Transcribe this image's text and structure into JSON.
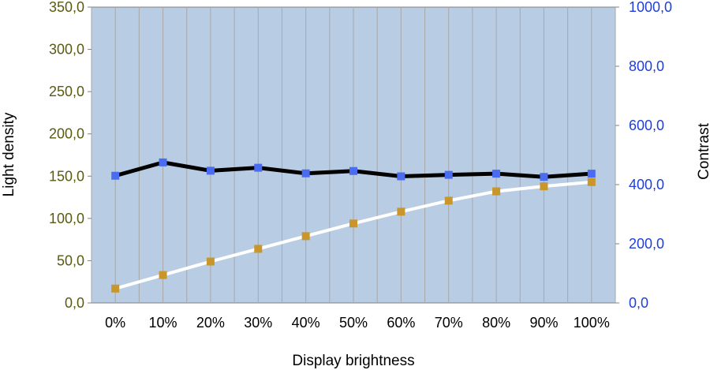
{
  "chart_data": {
    "type": "line",
    "title": "",
    "xlabel": "Display brightness",
    "ylabel_left": "Light density",
    "ylabel_right": "Contrast",
    "categories": [
      "0%",
      "10%",
      "20%",
      "30%",
      "40%",
      "50%",
      "60%",
      "70%",
      "80%",
      "90%",
      "100%"
    ],
    "ylim_left": [
      0,
      350
    ],
    "ylim_right": [
      0,
      1000
    ],
    "yticks_left": [
      "0,0",
      "50,0",
      "100,0",
      "150,0",
      "200,0",
      "250,0",
      "300,0",
      "350,0"
    ],
    "yticks_right": [
      "0,0",
      "200,0",
      "400,0",
      "600,0",
      "800,0",
      "1000,0"
    ],
    "yticks_left_values": [
      0,
      50,
      100,
      150,
      200,
      250,
      300,
      350
    ],
    "yticks_right_values": [
      0,
      200,
      400,
      600,
      800,
      1000
    ],
    "grid": "vertical",
    "legend": "none",
    "series": [
      {
        "axis": "left",
        "values": [
          17,
          33,
          49,
          64,
          79,
          94,
          108,
          121,
          132,
          138,
          143
        ],
        "line_color": "#ffffff",
        "marker_color": "#c8962a"
      },
      {
        "axis": "right",
        "values": [
          430,
          475,
          447,
          457,
          438,
          446,
          428,
          433,
          437,
          426,
          437
        ],
        "line_color": "#000000",
        "marker_color": "#4a6cf0"
      }
    ],
    "colors": {
      "plot_background": "#b8cce4",
      "grid": "#a8a8a8",
      "left_tick_text": "#5a5a10",
      "right_tick_text": "#1f3fd6"
    }
  }
}
